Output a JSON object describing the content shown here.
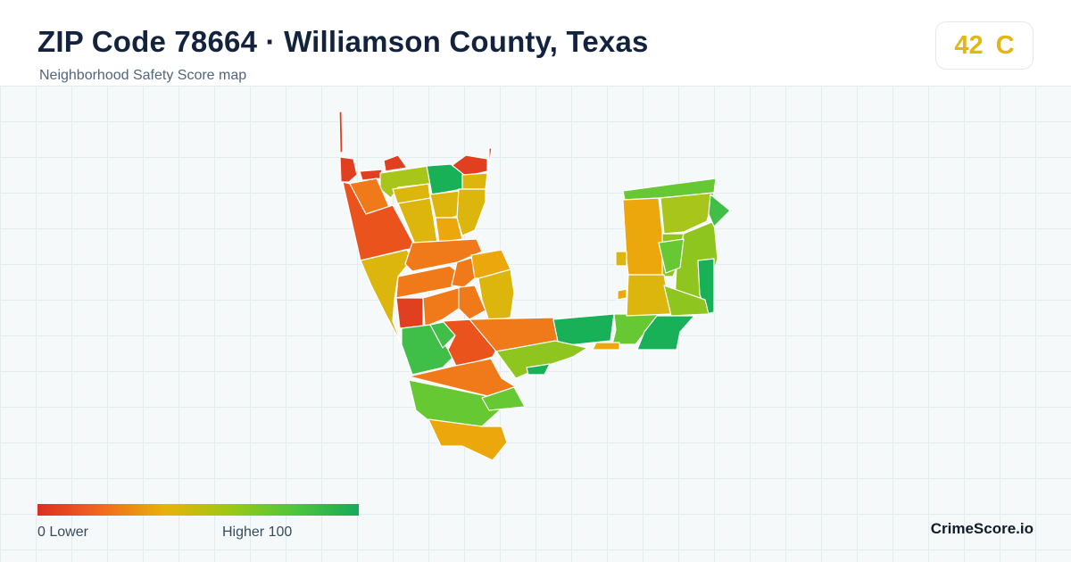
{
  "header": {
    "title": "ZIP Code 78664 · Williamson County, Texas",
    "subtitle": "Neighborhood Safety Score map"
  },
  "score_badge": {
    "score": "42",
    "grade": "C",
    "color": "#e2b712"
  },
  "legend": {
    "low_label": "0  Lower",
    "high_label": "Higher  100",
    "min_value": 0,
    "max_value": 100,
    "colors": [
      "#dc2e21",
      "#f06a1f",
      "#e8b20a",
      "#9bc816",
      "#4ec63a",
      "#16aa5a"
    ]
  },
  "brand": "CrimeScore.io",
  "map": {
    "palette": {
      "red": "#e0401f",
      "orange_red": "#ea531c",
      "orange": "#f07a1a",
      "amber": "#eba70c",
      "gold": "#dcb50d",
      "yellow_green": "#a7c51b",
      "lime": "#8fc51f",
      "light_green": "#66c832",
      "green": "#3fbe48",
      "emerald": "#19b157"
    }
  }
}
